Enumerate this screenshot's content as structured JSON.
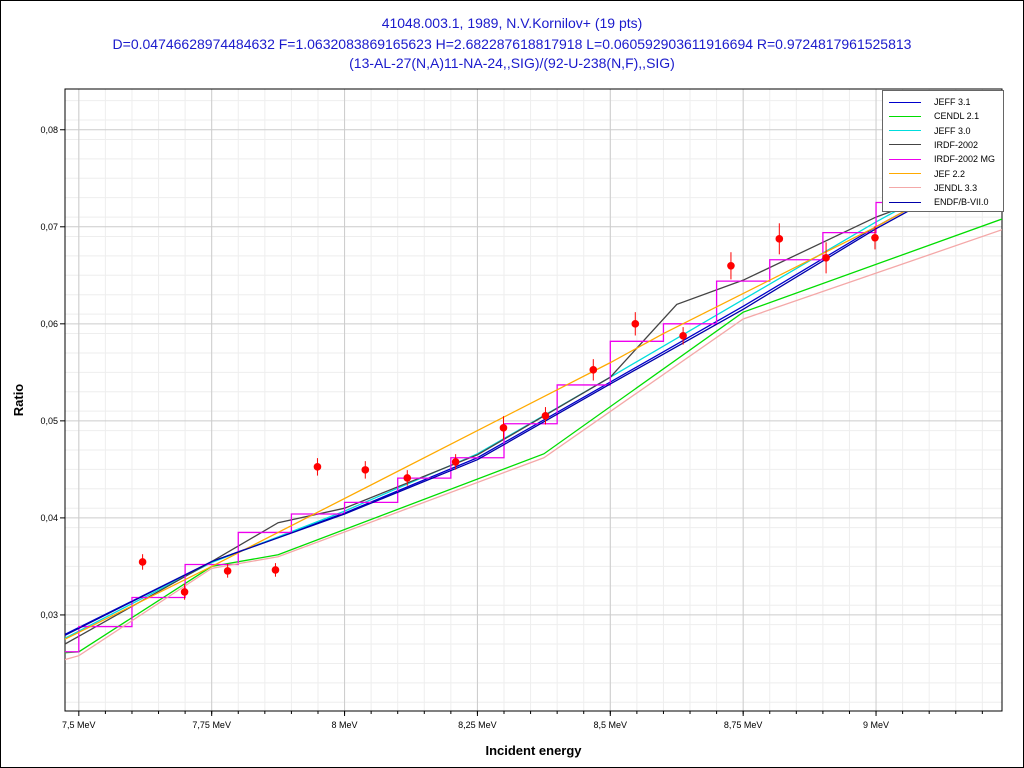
{
  "title": {
    "line1": "41048.003.1, 1989, N.V.Kornilov+ (19 pts)",
    "line2": "D=0.04746628974484632 F=1.0632083869165623 H=2.682287618817918 L=0.060592903611916694 R=0.9724817961525813",
    "line3": "(13-AL-27(N,A)11-NA-24,,SIG)/(92-U-238(N,F),,SIG)"
  },
  "chart_data": {
    "type": "line",
    "xlabel": "Incident energy",
    "ylabel": "Ratio",
    "xlim": [
      7.474,
      9.237
    ],
    "ylim": [
      0.0201,
      0.0842
    ],
    "xticks": [
      {
        "v": 7.5,
        "label": "7,5 MeV"
      },
      {
        "v": 7.75,
        "label": "7,75 MeV"
      },
      {
        "v": 8,
        "label": "8 MeV"
      },
      {
        "v": 8.25,
        "label": "8,25 MeV"
      },
      {
        "v": 8.5,
        "label": "8,5 MeV"
      },
      {
        "v": 8.75,
        "label": "8,75 MeV"
      },
      {
        "v": 9,
        "label": "9 MeV"
      }
    ],
    "yticks": [
      {
        "v": 0.03,
        "label": "0,03"
      },
      {
        "v": 0.04,
        "label": "0,04"
      },
      {
        "v": 0.05,
        "label": "0,05"
      },
      {
        "v": 0.06,
        "label": "0,06"
      },
      {
        "v": 0.07,
        "label": "0,07"
      },
      {
        "v": 0.08,
        "label": "0,08"
      }
    ],
    "grid": true,
    "legend_position": "top-right",
    "series": [
      {
        "name": "JEFF 3.1",
        "color": "#0000cc",
        "step": false,
        "x": [
          7.474,
          7.75,
          8,
          8.25,
          8.5,
          8.75,
          9,
          9.1
        ],
        "y": [
          0.028,
          0.0355,
          0.0405,
          0.0462,
          0.054,
          0.0618,
          0.07,
          0.073
        ]
      },
      {
        "name": "CENDL 2.1",
        "color": "#00dd00",
        "step": false,
        "x": [
          7.474,
          7.5,
          7.75,
          7.875,
          8.375,
          8.75,
          9.237
        ],
        "y": [
          0.0261,
          0.0262,
          0.035,
          0.0362,
          0.0466,
          0.0612,
          0.0708
        ]
      },
      {
        "name": "JEFF 3.0",
        "color": "#00dddd",
        "step": false,
        "x": [
          7.474,
          7.75,
          8,
          8.25,
          8.5,
          8.75,
          9,
          9.1
        ],
        "y": [
          0.0276,
          0.0354,
          0.0407,
          0.0466,
          0.0545,
          0.0625,
          0.0705,
          0.0735
        ]
      },
      {
        "name": "IRDF-2002",
        "color": "#444444",
        "step": false,
        "x": [
          7.474,
          7.75,
          7.875,
          8,
          8.25,
          8.5,
          8.625,
          8.75,
          9,
          9.1
        ],
        "y": [
          0.027,
          0.0355,
          0.0395,
          0.041,
          0.0465,
          0.0545,
          0.062,
          0.0645,
          0.071,
          0.073
        ]
      },
      {
        "name": "IRDF-2002 MG",
        "color": "#ee00ee",
        "step": true,
        "x": [
          7.474,
          7.5,
          7.6,
          7.7,
          7.8,
          7.9,
          8.0,
          8.1,
          8.2,
          8.3,
          8.4,
          8.5,
          8.6,
          8.7,
          8.8,
          8.9,
          9.0,
          9.1
        ],
        "y": [
          0.0262,
          0.0288,
          0.0318,
          0.0352,
          0.0385,
          0.0404,
          0.0416,
          0.0441,
          0.0462,
          0.0497,
          0.0537,
          0.0582,
          0.06,
          0.0644,
          0.0666,
          0.0694,
          0.0725,
          0.0725
        ]
      },
      {
        "name": "JEF 2.2",
        "color": "#ffaa00",
        "step": false,
        "x": [
          7.474,
          7.75,
          8.5,
          8.6,
          9,
          9.1
        ],
        "y": [
          0.0275,
          0.035,
          0.056,
          0.059,
          0.07,
          0.073
        ]
      },
      {
        "name": "JENDL 3.3",
        "color": "#f4a8a8",
        "step": false,
        "x": [
          7.474,
          7.5,
          7.75,
          7.875,
          8.375,
          8.75,
          9.237
        ],
        "y": [
          0.0254,
          0.0258,
          0.0348,
          0.036,
          0.0462,
          0.0605,
          0.0697
        ]
      },
      {
        "name": "ENDF/B-VII.0",
        "color": "#0000aa",
        "step": false,
        "x": [
          7.474,
          7.75,
          8,
          8.25,
          8.5,
          8.75,
          9,
          9.1
        ],
        "y": [
          0.0279,
          0.0355,
          0.0404,
          0.046,
          0.0538,
          0.0615,
          0.0698,
          0.0728
        ]
      }
    ],
    "points": {
      "color": "#ff0000",
      "x": [
        7.62,
        7.699,
        7.78,
        7.87,
        7.949,
        8.039,
        8.118,
        8.209,
        8.299,
        8.378,
        8.468,
        8.547,
        8.637,
        8.727,
        8.818,
        8.906,
        8.998
      ],
      "y": [
        0.03546,
        0.03237,
        0.03454,
        0.03464,
        0.04526,
        0.04495,
        0.04412,
        0.04577,
        0.04928,
        0.05052,
        0.05526,
        0.06,
        0.05876,
        0.06598,
        0.06876,
        0.0668,
        0.06887
      ],
      "err": [
        0.0008,
        0.0008,
        0.0007,
        0.0007,
        0.0009,
        0.0009,
        0.0008,
        0.0008,
        0.0012,
        0.0009,
        0.0011,
        0.0012,
        0.0009,
        0.0014,
        0.0016,
        0.0016,
        0.0012
      ]
    }
  }
}
